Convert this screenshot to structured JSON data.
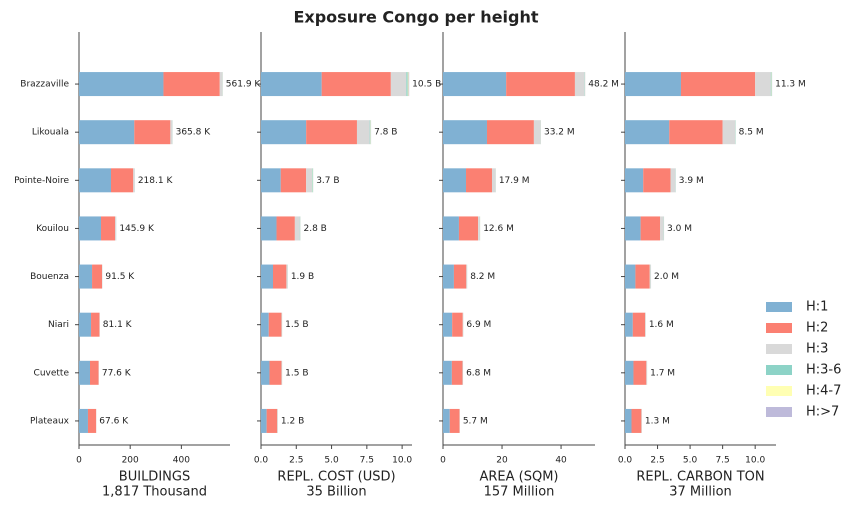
{
  "title": "Exposure Congo per height",
  "chart_data": [
    {
      "type": "bar",
      "orientation": "horizontal",
      "categories": [
        "Brazzaville",
        "Likouala",
        "Pointe-Noire",
        "Kouilou",
        "Bouenza",
        "Niari",
        "Cuvette",
        "Plateaux"
      ],
      "xlabel": [
        "BUILDINGS",
        "1,817 Thousand"
      ],
      "xlim": [
        0,
        590
      ],
      "xticks": [
        0,
        200,
        400
      ],
      "series": [
        {
          "name": "H:1",
          "color": "#80b1d3",
          "values": [
            330,
            216,
            125,
            86,
            51,
            47,
            43,
            35
          ]
        },
        {
          "name": "H:2",
          "color": "#fb8072",
          "values": [
            220,
            141,
            87,
            55,
            39,
            33,
            33.5,
            32
          ]
        },
        {
          "name": "H:3",
          "color": "#d9d9d9",
          "values": [
            11,
            8,
            5.5,
            4.4,
            1.2,
            0.9,
            0.9,
            0.4
          ]
        },
        {
          "name": "H:3-6",
          "color": "#8dd3c7",
          "values": [
            0.5,
            0.5,
            0.4,
            0.3,
            0.2,
            0.1,
            0.1,
            0.1
          ]
        },
        {
          "name": "H:4-7",
          "color": "#ffffb3",
          "values": [
            0.3,
            0.2,
            0.1,
            0.1,
            0.05,
            0.05,
            0.05,
            0.05
          ]
        },
        {
          "name": "H:>7",
          "color": "#bebada",
          "values": [
            0.1,
            0.1,
            0.1,
            0.1,
            0.05,
            0.05,
            0.05,
            0.05
          ]
        }
      ],
      "totals": [
        561.9,
        365.8,
        218.1,
        145.9,
        91.5,
        81.1,
        77.6,
        67.6
      ],
      "value_labels": [
        "561.9 K",
        "365.8 K",
        "218.1 K",
        "145.9 K",
        "91.5 K",
        "81.1 K",
        "77.6 K",
        "67.6 K"
      ]
    },
    {
      "type": "bar",
      "orientation": "horizontal",
      "xlabel": [
        "REPL. COST (USD)",
        "35 Billion"
      ],
      "xlim": [
        0,
        10.7
      ],
      "xticks": [
        {
          "value": 0,
          "label": "0.0"
        },
        2.5,
        {
          "value": 5,
          "label": "5.0"
        },
        7.5,
        {
          "value": 10,
          "label": "10.0"
        }
      ],
      "series": [
        {
          "values": [
            4.3,
            3.2,
            1.4,
            1.1,
            0.85,
            0.55,
            0.6,
            0.4
          ]
        },
        {
          "values": [
            4.9,
            3.6,
            1.8,
            1.3,
            0.95,
            0.9,
            0.85,
            0.75
          ]
        },
        {
          "values": [
            1.1,
            0.9,
            0.42,
            0.35,
            0.08,
            0.04,
            0.04,
            0.04
          ]
        },
        {
          "values": [
            0.1,
            0.05,
            0.05,
            0.03,
            0.01,
            0.005,
            0.005,
            0.005
          ]
        },
        {
          "values": [
            0.05,
            0.03,
            0.02,
            0.01,
            0.005,
            0.003,
            0.003,
            0.003
          ]
        },
        {
          "values": [
            0.05,
            0.02,
            0.01,
            0.01,
            0.005,
            0.002,
            0.002,
            0.002
          ]
        }
      ],
      "totals": [
        10.5,
        7.8,
        3.7,
        2.8,
        1.9,
        1.5,
        1.5,
        1.2
      ],
      "value_labels": [
        "10.5 B",
        "7.8 B",
        "3.7 B",
        "2.8 B",
        "1.9 B",
        "1.5 B",
        "1.5 B",
        "1.2 B"
      ]
    },
    {
      "type": "bar",
      "orientation": "horizontal",
      "xlabel": [
        "AREA (SQM)",
        "157 Million"
      ],
      "xlim": [
        0,
        51.5
      ],
      "xticks": [
        0,
        20,
        40
      ],
      "series": [
        {
          "values": [
            21.4,
            14.9,
            7.8,
            5.4,
            3.7,
            3.1,
            3.0,
            2.3
          ]
        },
        {
          "values": [
            23.3,
            15.9,
            8.8,
            6.5,
            4.2,
            3.6,
            3.6,
            3.3
          ]
        },
        {
          "values": [
            3.3,
            2.3,
            1.2,
            0.6,
            0.25,
            0.15,
            0.15,
            0.07
          ]
        },
        {
          "values": [
            0.1,
            0.05,
            0.05,
            0.05,
            0.03,
            0.03,
            0.03,
            0.01
          ]
        },
        {
          "values": [
            0.05,
            0.03,
            0.03,
            0.03,
            0.01,
            0.01,
            0.01,
            0.01
          ]
        },
        {
          "values": [
            0.05,
            0.02,
            0.02,
            0.02,
            0.01,
            0.01,
            0.01,
            0.01
          ]
        }
      ],
      "totals": [
        48.2,
        33.2,
        17.9,
        12.6,
        8.2,
        6.9,
        6.8,
        5.7
      ],
      "value_labels": [
        "48.2 M",
        "33.2 M",
        "17.9 M",
        "12.6 M",
        "8.2 M",
        "6.9 M",
        "6.8 M",
        "5.7 M"
      ]
    },
    {
      "type": "bar",
      "orientation": "horizontal",
      "xlabel": [
        "REPL. CARBON TON",
        "37 Million"
      ],
      "xlim": [
        0,
        11.6
      ],
      "xticks": [
        {
          "value": 0,
          "label": "0.0"
        },
        2.5,
        {
          "value": 5,
          "label": "5.0"
        },
        7.5,
        {
          "value": 10,
          "label": "10.0"
        }
      ],
      "series": [
        {
          "values": [
            4.3,
            3.4,
            1.4,
            1.2,
            0.8,
            0.6,
            0.65,
            0.5
          ]
        },
        {
          "values": [
            5.7,
            4.1,
            2.1,
            1.5,
            1.1,
            0.95,
            0.99,
            0.76
          ]
        },
        {
          "values": [
            1.2,
            0.95,
            0.37,
            0.27,
            0.08,
            0.04,
            0.05,
            0.03
          ]
        },
        {
          "values": [
            0.05,
            0.03,
            0.02,
            0.02,
            0.01,
            0.005,
            0.005,
            0.005
          ]
        },
        {
          "values": [
            0.03,
            0.01,
            0.005,
            0.005,
            0.005,
            0.003,
            0.003,
            0.003
          ]
        },
        {
          "values": [
            0.02,
            0.01,
            0.005,
            0.005,
            0.005,
            0.002,
            0.002,
            0.002
          ]
        }
      ],
      "totals": [
        11.3,
        8.5,
        3.9,
        3.0,
        2.0,
        1.6,
        1.7,
        1.3
      ],
      "value_labels": [
        "11.3 M",
        "8.5 M",
        "3.9 M",
        "3.0 M",
        "2.0 M",
        "1.6 M",
        "1.7 M",
        "1.3 M"
      ]
    }
  ]
}
